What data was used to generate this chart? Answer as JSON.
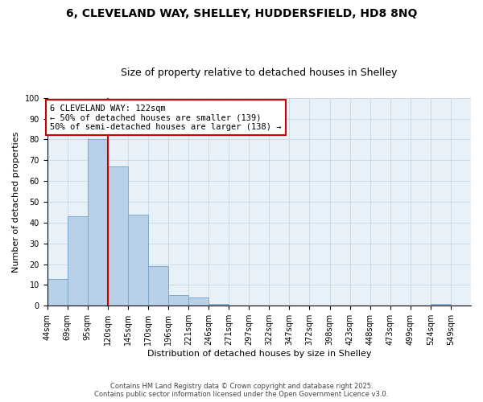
{
  "title": "6, CLEVELAND WAY, SHELLEY, HUDDERSFIELD, HD8 8NQ",
  "subtitle": "Size of property relative to detached houses in Shelley",
  "xlabel": "Distribution of detached houses by size in Shelley",
  "ylabel": "Number of detached properties",
  "bar_values": [
    13,
    43,
    80,
    67,
    44,
    19,
    5,
    4,
    1,
    0,
    0,
    0,
    0,
    0,
    0,
    0,
    0,
    0,
    0,
    1,
    0
  ],
  "categories": [
    "44sqm",
    "69sqm",
    "95sqm",
    "120sqm",
    "145sqm",
    "170sqm",
    "196sqm",
    "221sqm",
    "246sqm",
    "271sqm",
    "297sqm",
    "322sqm",
    "347sqm",
    "372sqm",
    "398sqm",
    "423sqm",
    "448sqm",
    "473sqm",
    "499sqm",
    "524sqm",
    "549sqm"
  ],
  "bar_color": "#b8d0e8",
  "bar_edge_color": "#7aaad0",
  "vline_color": "#cc0000",
  "ylim": [
    0,
    100
  ],
  "yticks": [
    0,
    10,
    20,
    30,
    40,
    50,
    60,
    70,
    80,
    90,
    100
  ],
  "annotation_title": "6 CLEVELAND WAY: 122sqm",
  "annotation_line1": "← 50% of detached houses are smaller (139)",
  "annotation_line2": "50% of semi-detached houses are larger (138) →",
  "annotation_box_color": "#cc0000",
  "background_color": "#e8f0f8",
  "grid_color": "#c0cfe0",
  "footer1": "Contains HM Land Registry data © Crown copyright and database right 2025.",
  "footer2": "Contains public sector information licensed under the Open Government Licence v3.0.",
  "title_fontsize": 10,
  "subtitle_fontsize": 9,
  "xlabel_fontsize": 8,
  "ylabel_fontsize": 8,
  "tick_fontsize": 7,
  "annotation_fontsize": 7.5,
  "footer_fontsize": 6
}
